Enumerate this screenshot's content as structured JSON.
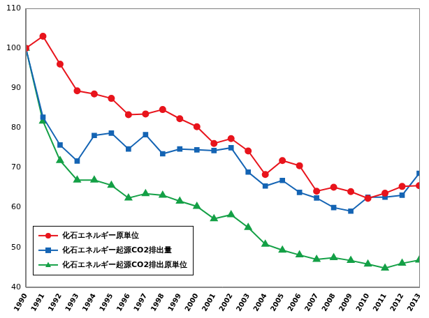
{
  "chart_data": {
    "type": "line",
    "categories": [
      "1990",
      "1991",
      "1992",
      "1993",
      "1994",
      "1995",
      "1996",
      "1997",
      "1998",
      "1999",
      "2000",
      "2001",
      "2002",
      "2003",
      "2004",
      "2005",
      "2006",
      "2007",
      "2008",
      "2009",
      "2010",
      "2011",
      "2012",
      "2013"
    ],
    "series": [
      {
        "name": "化石エネルギー原単位",
        "color": "#e8141c",
        "marker": "circle",
        "values": [
          100,
          103,
          96,
          89.3,
          88.5,
          87.4,
          83.3,
          83.5,
          84.6,
          82.3,
          80.3,
          76.1,
          77.3,
          74.2,
          68.3,
          71.8,
          70.5,
          64.1,
          65.1,
          64.0,
          62.3,
          63.6,
          65.3,
          65.5
        ]
      },
      {
        "name": "化石エネルギー起源CO2排出量",
        "color": "#1464b4",
        "marker": "square",
        "values": [
          100,
          82.7,
          75.7,
          71.7,
          78.1,
          78.7,
          74.7,
          78.3,
          73.5,
          74.7,
          74.5,
          74.3,
          75.0,
          68.9,
          65.4,
          66.8,
          63.8,
          62.4,
          60.0,
          59.1,
          62.6,
          62.6,
          63.1,
          68.6
        ]
      },
      {
        "name": "化石エネルギー起源CO2排出原単位",
        "color": "#14a046",
        "marker": "triangle",
        "values": [
          100,
          81.7,
          71.8,
          66.9,
          66.9,
          65.6,
          62.4,
          63.5,
          63.1,
          61.6,
          60.3,
          57.2,
          58.2,
          55.0,
          50.8,
          49.3,
          48.1,
          47.0,
          47.4,
          46.7,
          45.8,
          44.8,
          46.0,
          46.8
        ]
      }
    ],
    "ylim": [
      40,
      110
    ],
    "yticks": [
      40,
      50,
      60,
      70,
      80,
      90,
      100,
      110
    ],
    "grid": false,
    "legend": "lower left"
  }
}
